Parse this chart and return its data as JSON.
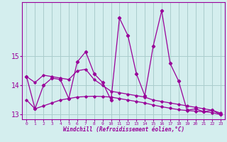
{
  "xlabel": "Windchill (Refroidissement éolien,°C)",
  "x": [
    0,
    1,
    2,
    3,
    4,
    5,
    6,
    7,
    8,
    9,
    10,
    11,
    12,
    13,
    14,
    15,
    16,
    17,
    18,
    19,
    20,
    21,
    22,
    23
  ],
  "y_main": [
    14.3,
    13.2,
    14.0,
    14.25,
    14.2,
    13.55,
    14.8,
    15.15,
    14.4,
    14.1,
    13.5,
    16.3,
    15.7,
    14.4,
    13.65,
    15.35,
    16.55,
    14.75,
    14.15,
    13.15,
    13.2,
    13.1,
    13.15,
    13.0
  ],
  "y_upper": [
    14.3,
    14.1,
    14.35,
    14.3,
    14.25,
    14.2,
    14.5,
    14.55,
    14.2,
    14.0,
    13.8,
    13.75,
    13.7,
    13.65,
    13.6,
    13.5,
    13.45,
    13.4,
    13.35,
    13.3,
    13.25,
    13.2,
    13.15,
    13.05
  ],
  "y_lower": [
    13.5,
    13.2,
    13.3,
    13.4,
    13.5,
    13.55,
    13.6,
    13.62,
    13.63,
    13.62,
    13.6,
    13.55,
    13.5,
    13.45,
    13.4,
    13.33,
    13.27,
    13.22,
    13.17,
    13.14,
    13.12,
    13.1,
    13.07,
    13.0
  ],
  "line_color": "#990099",
  "bg_color": "#d4eeee",
  "grid_color": "#aacccc",
  "ylim": [
    12.85,
    16.85
  ],
  "xlim": [
    -0.5,
    23.5
  ],
  "yticks": [
    13,
    14,
    15
  ],
  "xticks": [
    0,
    1,
    2,
    3,
    4,
    5,
    6,
    7,
    8,
    9,
    10,
    11,
    12,
    13,
    14,
    15,
    16,
    17,
    18,
    19,
    20,
    21,
    22,
    23
  ]
}
